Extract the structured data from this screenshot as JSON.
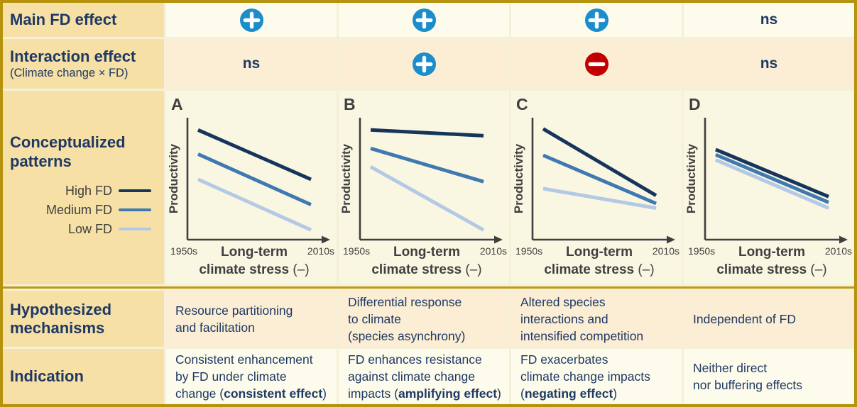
{
  "palette": {
    "plus_blue": "#1B8DCB",
    "minus_red": "#C00000",
    "navy_text": "#1F3864",
    "axis_gray": "#3F3F3F",
    "gold_label_bg": "#F6E0A5",
    "row_light_bg": "#FDFCEC",
    "row_peach_bg": "#FBEED5",
    "chart_bg": "#F9F6E2",
    "divider_gold": "#BF9A10",
    "border_gold": "#B6930E"
  },
  "figure": {
    "ns_label": "ns",
    "row_labels": {
      "main_effect": "Main FD effect",
      "interaction": "Interaction effect",
      "interaction_sub": "(Climate change × FD)",
      "patterns": "Conceptualized patterns",
      "mechanisms": "Hypothesized mechanisms",
      "indication": "Indication"
    },
    "main_effect_cells": [
      "plus",
      "plus",
      "plus",
      "ns"
    ],
    "interaction_cells": [
      "ns",
      "plus",
      "minus",
      "ns"
    ],
    "legend": [
      {
        "label": "High FD",
        "color": "#17355C"
      },
      {
        "label": "Medium FD",
        "color": "#4079B0"
      },
      {
        "label": "Low FD",
        "color": "#B3C9E5"
      }
    ],
    "mechanisms_cells": [
      [
        "Resource partitioning",
        "and facilitation"
      ],
      [
        "Differential response",
        "to climate",
        "(species asynchrony)"
      ],
      [
        "Altered species",
        "interactions and",
        "intensified competition"
      ],
      [
        "Independent of FD"
      ]
    ],
    "indication_cells": [
      [
        [
          {
            "t": "Consistent enhancement"
          }
        ],
        [
          {
            "t": "by FD under climate"
          }
        ],
        [
          {
            "t": "change ("
          },
          {
            "t": "consistent effect",
            "b": true
          },
          {
            "t": ")"
          }
        ]
      ],
      [
        [
          {
            "t": "FD enhances resistance"
          }
        ],
        [
          {
            "t": "against climate change"
          }
        ],
        [
          {
            "t": "impacts ("
          },
          {
            "t": "amplifying effect",
            "b": true
          },
          {
            "t": ")"
          }
        ]
      ],
      [
        [
          {
            "t": "FD exacerbates"
          }
        ],
        [
          {
            "t": "climate change impacts"
          }
        ],
        [
          {
            "t": "("
          },
          {
            "t": "negating effect",
            "b": true
          },
          {
            "t": ")"
          }
        ]
      ],
      [
        [
          {
            "t": "Neither direct"
          }
        ],
        [
          {
            "t": "nor buffering effects"
          }
        ]
      ]
    ]
  },
  "chart_data": [
    {
      "panel": "A",
      "type": "line",
      "ylabel": "Productivity",
      "ylim": [
        0,
        100
      ],
      "x_ticks": [
        "1950s",
        "2010s"
      ],
      "xlabel_line1": "Long-term",
      "xlabel_line2_bold": "climate stress ",
      "xlabel_line2_normal": "(–)",
      "pattern": "parallel decline; constant positive FD effect",
      "series": [
        {
          "name": "High FD",
          "color": "#17355C",
          "start": 93,
          "end": 50
        },
        {
          "name": "Medium FD",
          "color": "#4079B0",
          "start": 72,
          "end": 28
        },
        {
          "name": "Low FD",
          "color": "#B3C9E5",
          "start": 50,
          "end": 6
        }
      ]
    },
    {
      "panel": "B",
      "type": "line",
      "ylabel": "Productivity",
      "ylim": [
        0,
        100
      ],
      "x_ticks": [
        "1950s",
        "2010s"
      ],
      "xlabel_line1": "Long-term",
      "xlabel_line2_bold": "climate stress ",
      "xlabel_line2_normal": "(–)",
      "pattern": "diverging lines; high FD buffers climate stress",
      "series": [
        {
          "name": "High FD",
          "color": "#17355C",
          "start": 93,
          "end": 88
        },
        {
          "name": "Medium FD",
          "color": "#4079B0",
          "start": 77,
          "end": 48
        },
        {
          "name": "Low FD",
          "color": "#B3C9E5",
          "start": 61,
          "end": 6
        }
      ]
    },
    {
      "panel": "C",
      "type": "line",
      "ylabel": "Productivity",
      "ylim": [
        0,
        100
      ],
      "x_ticks": [
        "1950s",
        "2010s"
      ],
      "xlabel_line1": "Long-term",
      "xlabel_line2_bold": "climate stress ",
      "xlabel_line2_normal": "(–)",
      "pattern": "converging lines; high FD declines fastest",
      "series": [
        {
          "name": "High FD",
          "color": "#17355C",
          "start": 94,
          "end": 36
        },
        {
          "name": "Medium FD",
          "color": "#4079B0",
          "start": 71,
          "end": 29
        },
        {
          "name": "Low FD",
          "color": "#B3C9E5",
          "start": 42,
          "end": 25
        }
      ]
    },
    {
      "panel": "D",
      "type": "line",
      "ylabel": "Productivity",
      "ylim": [
        0,
        100
      ],
      "x_ticks": [
        "1950s",
        "2010s"
      ],
      "xlabel_line1": "Long-term",
      "xlabel_line2_bold": "climate stress ",
      "xlabel_line2_normal": "(–)",
      "pattern": "overlapping parallel decline regardless of FD",
      "series": [
        {
          "name": "High FD",
          "color": "#17355C",
          "start": 76,
          "end": 35
        },
        {
          "name": "Medium FD",
          "color": "#4079B0",
          "start": 71.5,
          "end": 30
        },
        {
          "name": "Low FD",
          "color": "#B3C9E5",
          "start": 67,
          "end": 25
        }
      ]
    }
  ]
}
